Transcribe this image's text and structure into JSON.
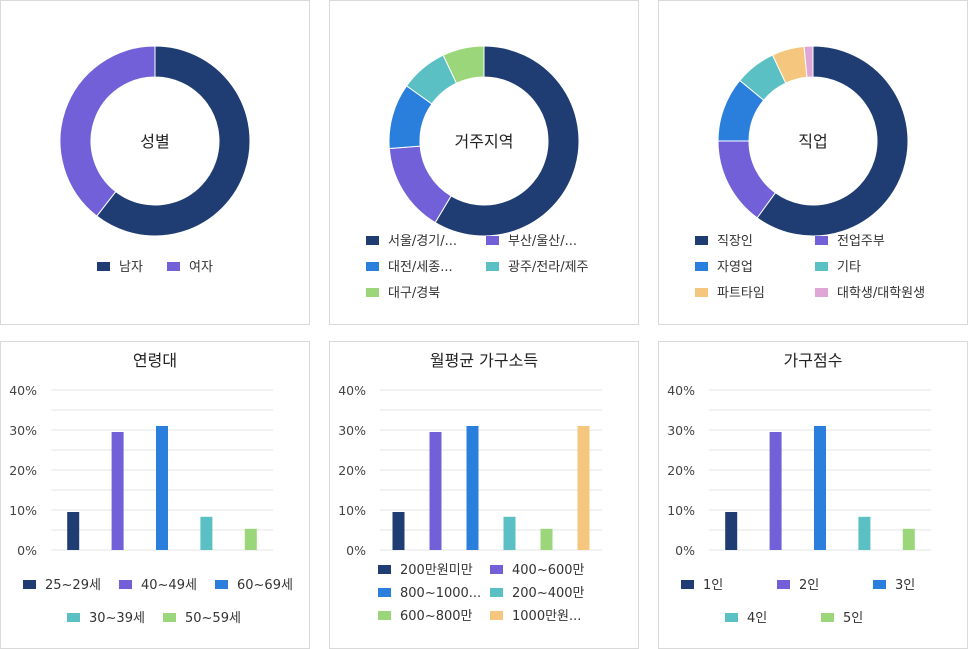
{
  "colors": {
    "navy": "#1f3d73",
    "purple": "#7260d8",
    "blue": "#2b7fdc",
    "teal": "#5bc0c4",
    "green": "#9bd67a",
    "orange": "#f5c77e",
    "pink": "#e0a7d6",
    "grid": "#e6e6e6",
    "text": "#333333",
    "axis_text": "#444444"
  },
  "chart_data": [
    {
      "id": "gender",
      "type": "pie",
      "donut": true,
      "title": "성별",
      "categories": [
        "남자",
        "여자"
      ],
      "values": [
        60.5,
        39.5
      ],
      "colors": [
        "#1f3d73",
        "#7260d8"
      ],
      "legend": "bottom"
    },
    {
      "id": "region",
      "type": "pie",
      "donut": true,
      "title": "거주지역",
      "categories": [
        "서울/경기/...",
        "부산/울산/...",
        "대전/세종...",
        "광주/전라/제주",
        "대구/경북"
      ],
      "values": [
        58,
        15,
        11,
        8,
        7
      ],
      "colors": [
        "#1f3d73",
        "#7260d8",
        "#2b7fdc",
        "#5bc0c4",
        "#9bd67a"
      ],
      "legend": "bottom"
    },
    {
      "id": "job",
      "type": "pie",
      "donut": true,
      "title": "직업",
      "categories": [
        "직장인",
        "전업주부",
        "자영업",
        "기타",
        "파트타임",
        "대학생/대학원생"
      ],
      "values": [
        60,
        15,
        11,
        7,
        5.5,
        1.5
      ],
      "colors": [
        "#1f3d73",
        "#7260d8",
        "#2b7fdc",
        "#5bc0c4",
        "#f5c77e",
        "#e0a7d6"
      ],
      "legend": "bottom"
    },
    {
      "id": "age",
      "type": "bar",
      "title": "연령대",
      "categories": [
        "25~29세",
        "40~49세",
        "60~69세",
        "30~39세",
        "50~59세"
      ],
      "values": [
        9.5,
        29.5,
        31,
        8.3,
        5.3
      ],
      "colors": [
        "#1f3d73",
        "#7260d8",
        "#2b7fdc",
        "#5bc0c4",
        "#9bd67a"
      ],
      "ylim": [
        0,
        40
      ],
      "yticks": [
        "0%",
        "10%",
        "20%",
        "30%",
        "40%"
      ],
      "grid": true,
      "legend": "bottom"
    },
    {
      "id": "income",
      "type": "bar",
      "title": "월평균 가구소득",
      "categories": [
        "200만원미만",
        "400~600만",
        "800~1000...",
        "200~400만",
        "600~800만",
        "1000만원..."
      ],
      "values": [
        9.5,
        29.5,
        31,
        8.3,
        5.3,
        31
      ],
      "colors": [
        "#1f3d73",
        "#7260d8",
        "#2b7fdc",
        "#5bc0c4",
        "#9bd67a",
        "#f5c77e"
      ],
      "ylim": [
        0,
        40
      ],
      "yticks": [
        "0%",
        "10%",
        "20%",
        "30%",
        "40%"
      ],
      "grid": true,
      "legend": "bottom"
    },
    {
      "id": "household",
      "type": "bar",
      "title": "가구점수",
      "categories": [
        "1인",
        "2인",
        "3인",
        "4인",
        "5인"
      ],
      "values": [
        9.5,
        29.5,
        31,
        8.3,
        5.3
      ],
      "colors": [
        "#1f3d73",
        "#7260d8",
        "#2b7fdc",
        "#5bc0c4",
        "#9bd67a"
      ],
      "ylim": [
        0,
        40
      ],
      "yticks": [
        "0%",
        "10%",
        "20%",
        "30%",
        "40%"
      ],
      "grid": true,
      "legend": "bottom"
    }
  ]
}
